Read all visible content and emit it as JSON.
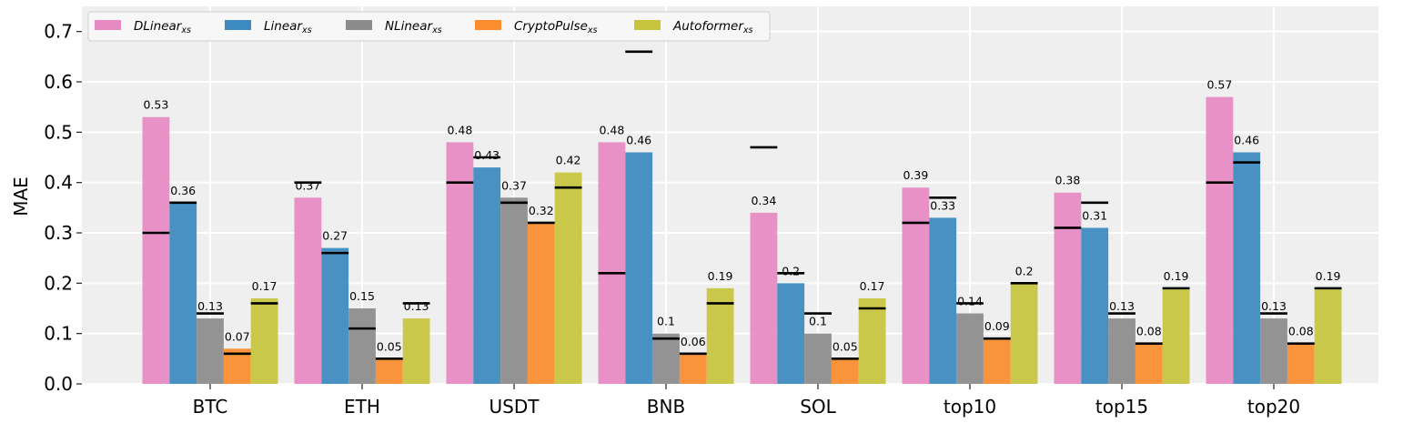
{
  "chart_data": {
    "type": "bar",
    "title": "",
    "xlabel": "",
    "ylabel": "MAE",
    "ylim": [
      0,
      0.75
    ],
    "yticks": [
      "0.0",
      "0.1",
      "0.2",
      "0.3",
      "0.4",
      "0.5",
      "0.6",
      "0.7"
    ],
    "grid": true,
    "legend_position": "top-left",
    "categories": [
      "BTC",
      "ETH",
      "USDT",
      "BNB",
      "SOL",
      "top10",
      "top15",
      "top20"
    ],
    "series": [
      {
        "name": "DLinear",
        "subscript": "xs",
        "color": "#e78ac3",
        "values": [
          0.53,
          0.37,
          0.48,
          0.48,
          0.34,
          0.39,
          0.38,
          0.57
        ],
        "labels": [
          "0.53",
          "0.37",
          "0.48",
          "0.48",
          "0.34",
          "0.39",
          "0.38",
          "0.57"
        ],
        "markers": [
          0.3,
          0.4,
          0.4,
          0.22,
          0.47,
          0.32,
          0.31,
          0.4
        ]
      },
      {
        "name": "Linear",
        "subscript": "xs",
        "color": "#3c8abf",
        "values": [
          0.36,
          0.27,
          0.43,
          0.46,
          0.2,
          0.33,
          0.31,
          0.46
        ],
        "labels": [
          "0.36",
          "0.27",
          "0.43",
          "0.46",
          "0.2",
          "0.33",
          "0.31",
          "0.46"
        ],
        "markers": [
          0.36,
          0.26,
          0.45,
          0.66,
          0.22,
          0.37,
          0.36,
          0.44
        ]
      },
      {
        "name": "NLinear",
        "subscript": "xs",
        "color": "#8c8c8c",
        "values": [
          0.13,
          0.15,
          0.37,
          0.1,
          0.1,
          0.14,
          0.13,
          0.13
        ],
        "labels": [
          "0.13",
          "0.15",
          "0.37",
          "0.1",
          "0.1",
          "0.14",
          "0.13",
          "0.13"
        ],
        "markers": [
          0.14,
          0.11,
          0.36,
          0.09,
          0.14,
          0.16,
          0.14,
          0.14
        ]
      },
      {
        "name": "CryptoPulse",
        "subscript": "xs",
        "color": "#fb8d2e",
        "values": [
          0.07,
          0.05,
          0.32,
          0.06,
          0.05,
          0.09,
          0.08,
          0.08
        ],
        "labels": [
          "0.07",
          "0.05",
          "0.32",
          "0.06",
          "0.05",
          "0.09",
          "0.08",
          "0.08"
        ],
        "markers": [
          0.06,
          0.05,
          0.32,
          0.06,
          0.05,
          0.09,
          0.08,
          0.08
        ]
      },
      {
        "name": "Autoformer",
        "subscript": "xs",
        "color": "#c7c53e",
        "values": [
          0.17,
          0.13,
          0.42,
          0.19,
          0.17,
          0.2,
          0.19,
          0.19
        ],
        "labels": [
          "0.17",
          "0.13",
          "0.42",
          "0.19",
          "0.17",
          "0.2",
          "0.19",
          "0.19"
        ],
        "markers": [
          0.16,
          0.16,
          0.39,
          0.16,
          0.15,
          0.2,
          0.19,
          0.19
        ]
      }
    ]
  }
}
